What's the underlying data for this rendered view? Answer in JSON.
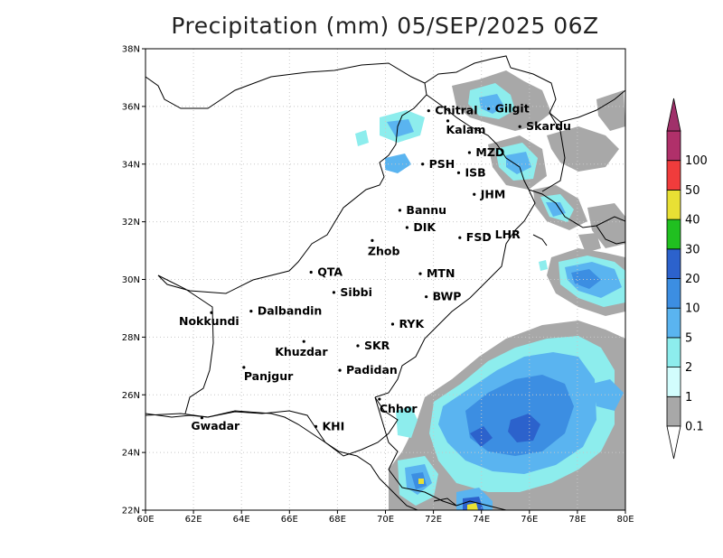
{
  "title": "Precipitation (mm) 05/SEP/2025 06Z",
  "chart_data": {
    "type": "heatmap",
    "title": "Precipitation (mm) 05/SEP/2025 06Z",
    "x_ticks": [
      "60E",
      "62E",
      "64E",
      "66E",
      "68E",
      "70E",
      "72E",
      "74E",
      "76E",
      "78E",
      "80E"
    ],
    "y_ticks": [
      "22N",
      "24N",
      "26N",
      "28N",
      "30N",
      "32N",
      "34N",
      "36N",
      "38N"
    ],
    "xlim": [
      60,
      80
    ],
    "ylim": [
      22,
      38
    ],
    "grid": true,
    "colorbar": {
      "levels": [
        "0.1",
        "1",
        "2",
        "5",
        "10",
        "20",
        "30",
        "40",
        "50",
        "100"
      ],
      "colors": [
        "#a8a8a8",
        "#d2fdfd",
        "#8deded",
        "#5ab4f0",
        "#3c8ee2",
        "#2c62cc",
        "#20c020",
        "#e8e034",
        "#f03c3c",
        "#b0306a"
      ],
      "placement": "right"
    },
    "cities": [
      {
        "name": "Chitral",
        "lon": 71.8,
        "lat": 35.85
      },
      {
        "name": "Gilgit",
        "lon": 74.3,
        "lat": 35.92
      },
      {
        "name": "Kalam",
        "lon": 72.6,
        "lat": 35.5
      },
      {
        "name": "Skardu",
        "lon": 75.6,
        "lat": 35.3
      },
      {
        "name": "MZD",
        "lon": 73.5,
        "lat": 34.4
      },
      {
        "name": "PSH",
        "lon": 71.55,
        "lat": 34.0
      },
      {
        "name": "ISB",
        "lon": 73.05,
        "lat": 33.7
      },
      {
        "name": "JHM",
        "lon": 73.7,
        "lat": 32.95
      },
      {
        "name": "Bannu",
        "lon": 70.6,
        "lat": 32.4
      },
      {
        "name": "DIK",
        "lon": 70.9,
        "lat": 31.8
      },
      {
        "name": "FSD",
        "lon": 73.1,
        "lat": 31.45
      },
      {
        "name": "LHR",
        "lon": 74.3,
        "lat": 31.55
      },
      {
        "name": "Zhob",
        "lon": 69.45,
        "lat": 31.35
      },
      {
        "name": "QTA",
        "lon": 66.9,
        "lat": 30.25
      },
      {
        "name": "MTN",
        "lon": 71.45,
        "lat": 30.2
      },
      {
        "name": "Sibbi",
        "lon": 67.85,
        "lat": 29.55
      },
      {
        "name": "BWP",
        "lon": 71.7,
        "lat": 29.4
      },
      {
        "name": "Dalbandin",
        "lon": 64.4,
        "lat": 28.9
      },
      {
        "name": "Nokkundi",
        "lon": 62.75,
        "lat": 28.85
      },
      {
        "name": "RYK",
        "lon": 70.3,
        "lat": 28.45
      },
      {
        "name": "Khuzdar",
        "lon": 66.6,
        "lat": 27.85
      },
      {
        "name": "SKR",
        "lon": 68.85,
        "lat": 27.7
      },
      {
        "name": "Panjgur",
        "lon": 64.1,
        "lat": 26.95
      },
      {
        "name": "Padidan",
        "lon": 68.1,
        "lat": 26.85
      },
      {
        "name": "Chhor",
        "lon": 69.75,
        "lat": 25.85
      },
      {
        "name": "KHI",
        "lon": 67.1,
        "lat": 24.9
      },
      {
        "name": "Gwadar",
        "lon": 62.35,
        "lat": 25.2
      }
    ]
  }
}
